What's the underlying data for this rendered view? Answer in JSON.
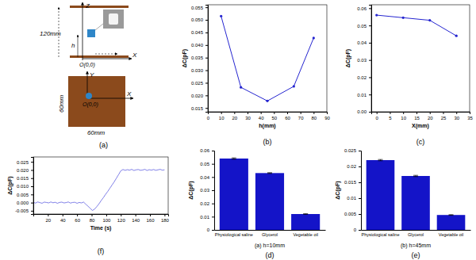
{
  "diagram": {
    "label": "(a)",
    "side_view": {
      "z_axis": "Z",
      "x_axis": "X",
      "origin": "O(0,0)",
      "height": "120mm",
      "h": "h"
    },
    "top_view": {
      "y_axis": "Y",
      "x_axis": "X",
      "origin": "O(0,0)",
      "width": "60mm",
      "depth": "60mm"
    }
  },
  "chart_data": [
    {
      "type": "line",
      "title": "(b)",
      "x_label": "h(mm)",
      "y_label": "ΔC(pF)",
      "x": [
        10,
        25,
        45,
        65,
        80
      ],
      "values": [
        0.0515,
        0.0232,
        0.0178,
        0.0236,
        0.0428
      ],
      "color": "#2525d0",
      "marker": "circle",
      "grid": false,
      "xlim": [
        0,
        90
      ],
      "xticks": [
        0,
        10,
        20,
        30,
        40,
        50,
        60,
        70,
        80,
        90
      ],
      "ylim": [
        0.0135,
        0.056
      ],
      "yticks": [
        0.015,
        {
          "value": 0.02,
          "label": "0.020"
        },
        0.025,
        {
          "value": 0.03,
          "label": "0.030"
        },
        0.035,
        {
          "value": 0.04,
          "label": "0.040"
        },
        0.045,
        {
          "value": 0.05,
          "label": "0.050"
        },
        0.055
      ]
    },
    {
      "type": "line",
      "title": "(c)",
      "x_label": "X(mm)",
      "y_label": "ΔC(pF)",
      "x": [
        0,
        10,
        20,
        30
      ],
      "values": [
        0.056,
        0.0545,
        0.053,
        0.044
      ],
      "color": "#2525d0",
      "marker": "circle",
      "grid": false,
      "xlim": [
        -2,
        35
      ],
      "xticks": [
        0,
        5,
        10,
        15,
        20,
        25,
        30,
        35
      ],
      "ylim": [
        0,
        0.062
      ],
      "yticks": [
        {
          "value": 0,
          "label": "0.00"
        },
        0.01,
        0.02,
        0.03,
        0.04,
        0.05,
        0.06
      ]
    },
    {
      "type": "line",
      "title": "(f)",
      "x_label": "Time (s)",
      "y_label": "ΔC(pF)",
      "x": [
        0,
        3,
        6,
        9,
        12,
        15,
        18,
        21,
        24,
        27,
        30,
        33,
        36,
        39,
        42,
        45,
        48,
        51,
        54,
        57,
        60,
        63,
        66,
        69,
        72,
        75,
        78,
        81,
        84,
        87,
        90,
        93,
        96,
        99,
        102,
        105,
        108,
        111,
        114,
        117,
        120,
        123,
        126,
        129,
        132,
        135,
        138,
        141,
        144,
        147,
        150,
        153,
        156,
        159,
        162,
        165,
        168,
        171,
        174,
        177,
        180
      ],
      "values": [
        0.0002,
        -0.0003,
        0.0004,
        0,
        -0.0004,
        0.0003,
        0.0001,
        -0.0002,
        0.0004,
        -0.0001,
        0.0002,
        -0.0004,
        0.0001,
        0.0003,
        -0.0002,
        0,
        0.0004,
        -0.0003,
        0.0001,
        0.0002,
        -0.0004,
        0.0001,
        -0.0002,
        0.0003,
        -0.001,
        -0.0022,
        -0.0035,
        -0.0048,
        -0.004,
        -0.0025,
        -0.0008,
        0.0012,
        0.003,
        0.005,
        0.0068,
        0.0088,
        0.0108,
        0.0128,
        0.015,
        0.0172,
        0.0195,
        0.0203,
        0.0198,
        0.0202,
        0.0199,
        0.0204,
        0.0197,
        0.0201,
        0.0203,
        0.0198,
        0.02,
        0.0204,
        0.0197,
        0.0202,
        0.0199,
        0.0203,
        0.0198,
        0.0201,
        0.0204,
        0.0199,
        0.0201
      ],
      "color": "#2b2bd6",
      "grid": false,
      "xlim": [
        0,
        185
      ],
      "xticks": [
        20,
        40,
        60,
        80,
        100,
        120,
        140,
        160,
        180
      ],
      "ylim": [
        -0.007,
        0.028
      ],
      "yticks": [
        -0.005,
        {
          "value": 0,
          "label": "0.000"
        },
        0.005,
        {
          "value": 0.01,
          "label": "0.010"
        },
        0.015,
        {
          "value": 0.02,
          "label": "0.020"
        },
        0.025
      ]
    },
    {
      "type": "bar",
      "title": "(d)",
      "subtitle": "(a) h=10mm",
      "y_label": "ΔC(pF)",
      "categories": [
        "Physiological saline",
        "Glycerol",
        "Vegetable oil"
      ],
      "values": [
        0.054,
        0.043,
        0.012
      ],
      "errors": [
        0.0005,
        0.0003,
        0.0002
      ],
      "color": "#1414c8",
      "grid": false,
      "ylim": [
        0,
        0.06
      ],
      "yticks": [
        0,
        0.01,
        0.02,
        0.03,
        0.04,
        0.05,
        0.06
      ]
    },
    {
      "type": "bar",
      "title": "(e)",
      "subtitle": "(b) h=45mm",
      "y_label": "ΔC(pF)",
      "categories": [
        "Physiological saline",
        "Glycerol",
        "Vegetable oil"
      ],
      "values": [
        0.022,
        0.017,
        0.0047
      ],
      "errors": [
        0.0002,
        0.0002,
        0.0001
      ],
      "color": "#1414c8",
      "grid": false,
      "ylim": [
        0,
        0.025
      ],
      "yticks": [
        0,
        0.005,
        0.01,
        0.015,
        0.02,
        0.025
      ]
    }
  ]
}
